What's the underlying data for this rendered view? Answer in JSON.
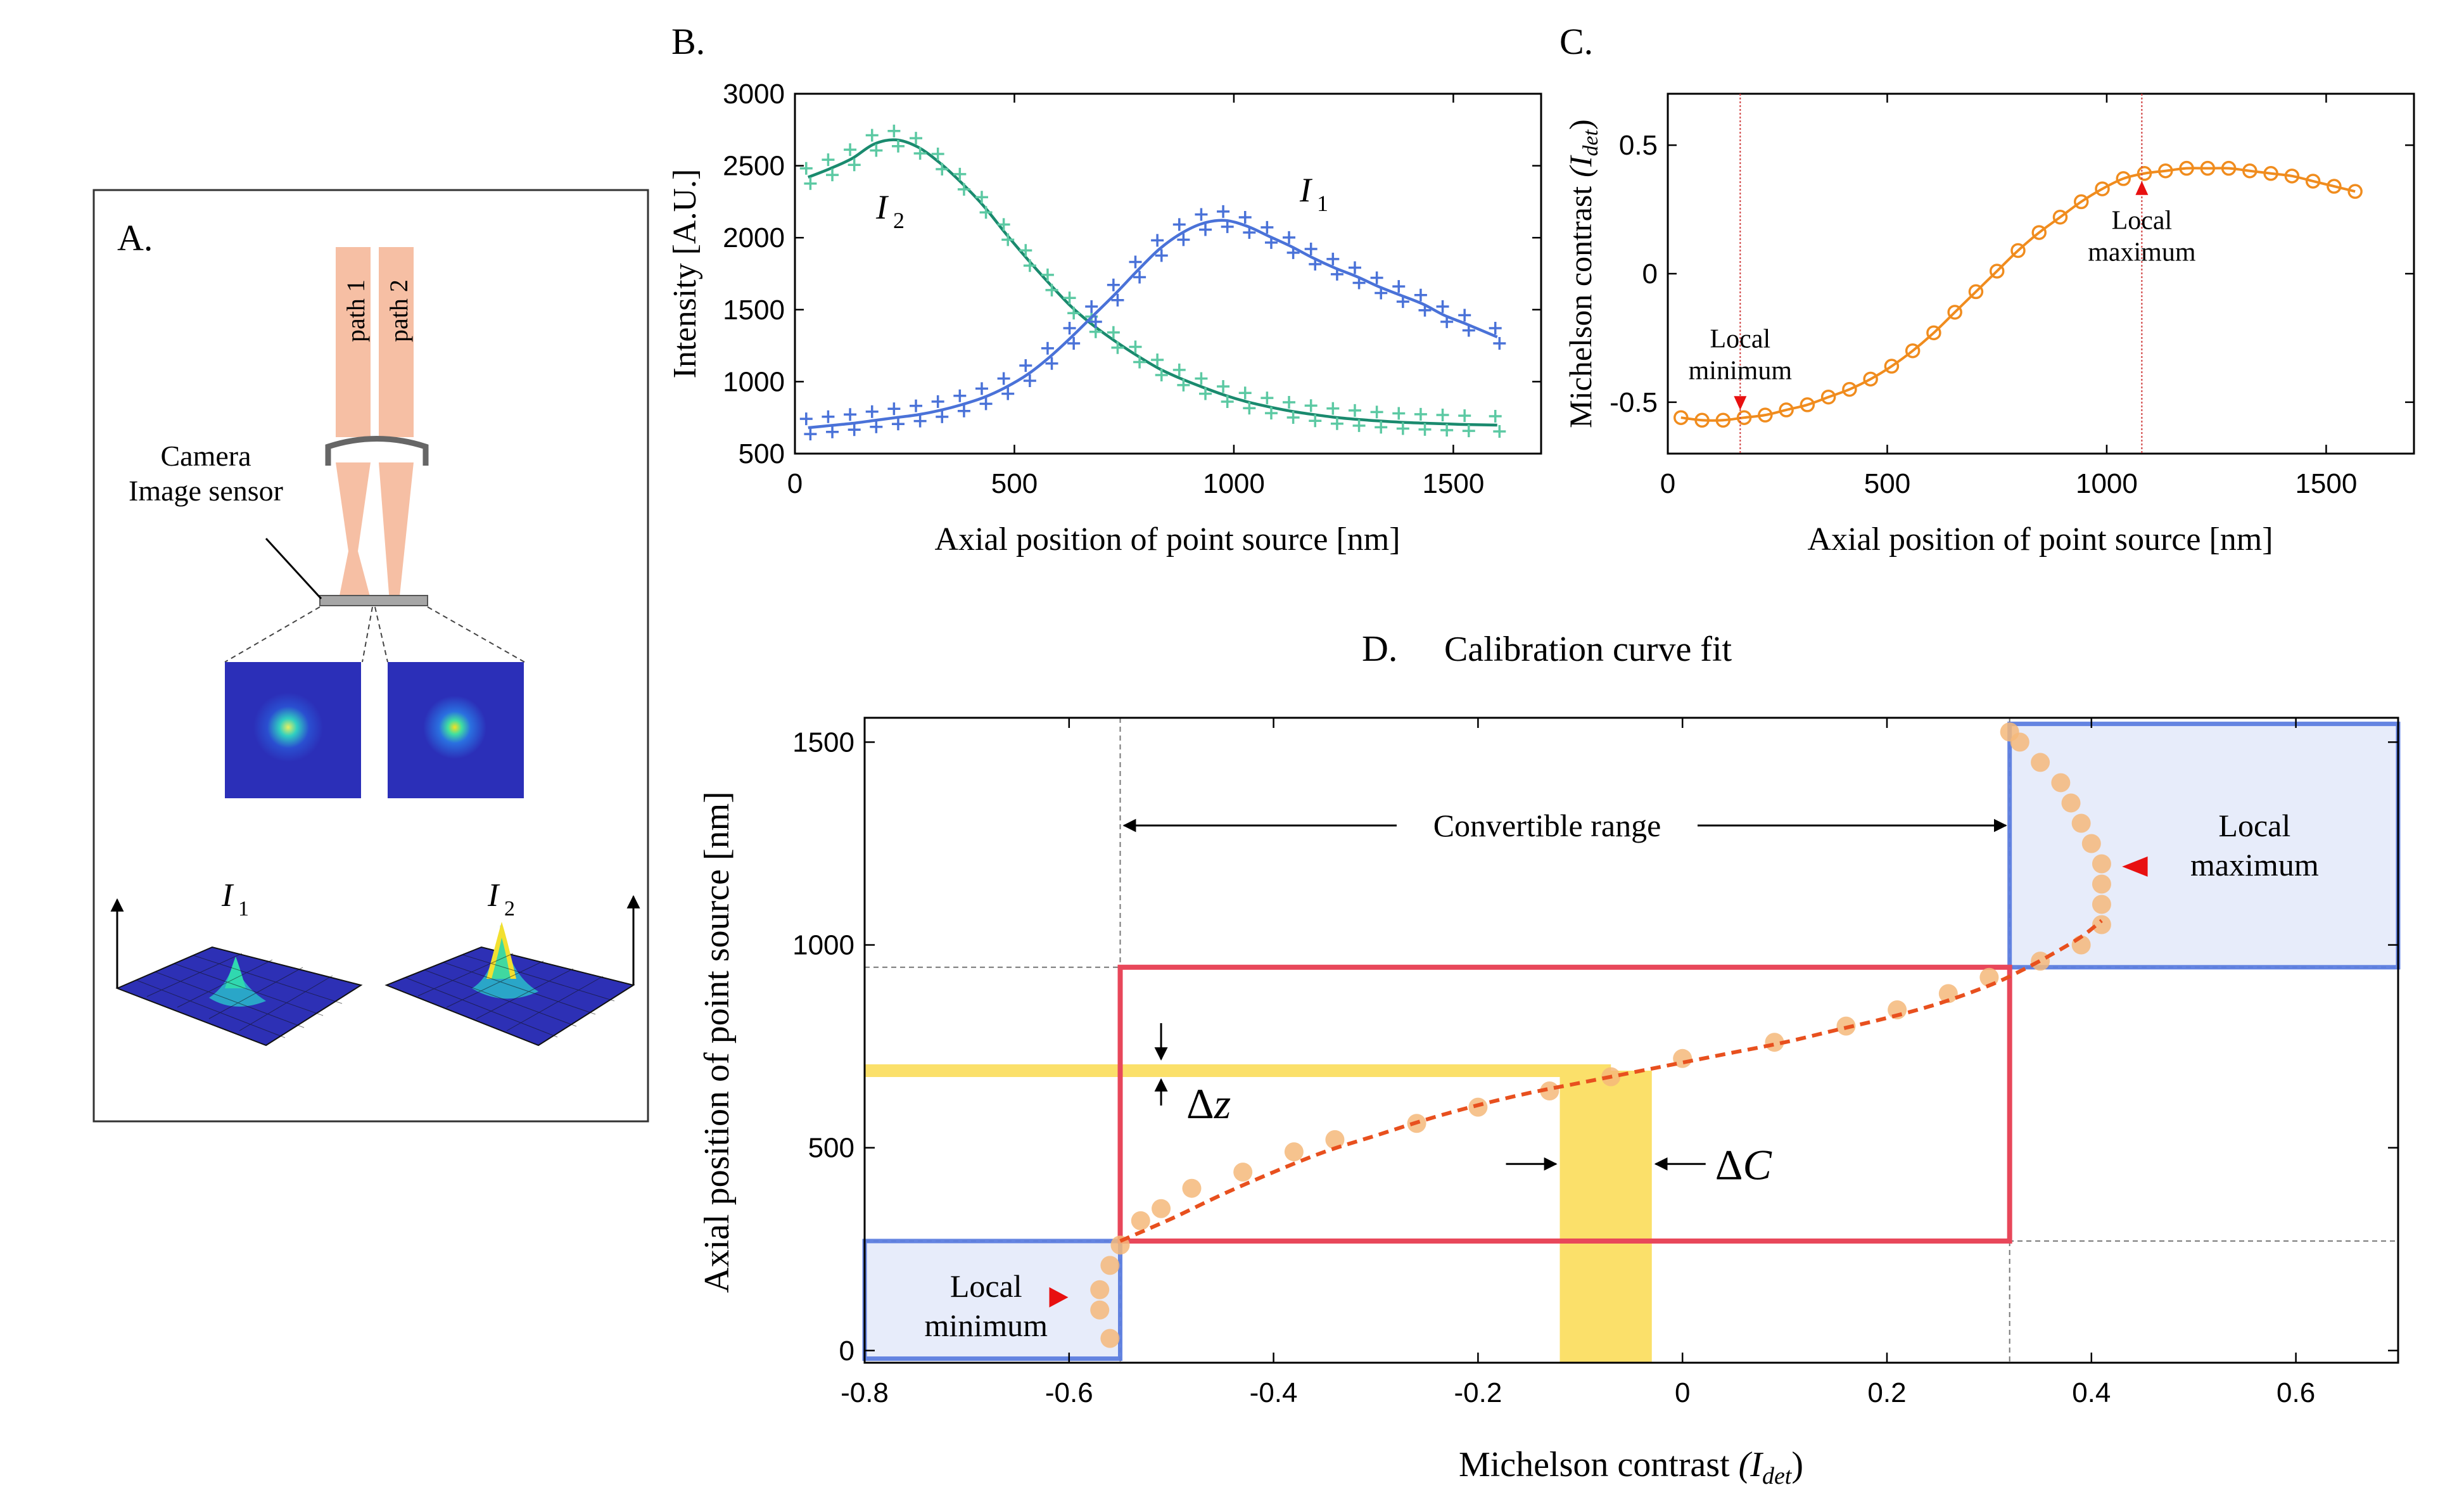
{
  "panel_a": {
    "letter": "A.",
    "path1_label": "path 1",
    "path2_label": "path 2",
    "camera_label": "Camera",
    "sensor_label": "Image sensor",
    "i1_label": "I",
    "i1_sub": "1",
    "i2_label": "I",
    "i2_sub": "2"
  },
  "chart_data": [
    {
      "id": "B",
      "letter": "B.",
      "type": "line",
      "title": "",
      "xlabel": "Axial position of point source [nm]",
      "ylabel": "Intensity [A.U.]",
      "xlim": [
        0,
        1700
      ],
      "ylim": [
        500,
        3000
      ],
      "xticks": [
        0,
        500,
        1000,
        1500
      ],
      "yticks": [
        500,
        1000,
        1500,
        2000,
        2500,
        3000
      ],
      "series": [
        {
          "name": "I2",
          "label_main": "I",
          "label_sub": "2",
          "color": "#1a8a6e",
          "marker_color": "#5cc9a3",
          "x": [
            30,
            80,
            130,
            180,
            230,
            280,
            330,
            380,
            430,
            480,
            530,
            580,
            630,
            680,
            730,
            780,
            830,
            880,
            930,
            980,
            1030,
            1080,
            1130,
            1180,
            1230,
            1280,
            1330,
            1380,
            1430,
            1480,
            1530,
            1600
          ],
          "y": [
            2420,
            2480,
            2550,
            2650,
            2680,
            2630,
            2520,
            2380,
            2220,
            2030,
            1850,
            1680,
            1520,
            1390,
            1280,
            1180,
            1090,
            1020,
            960,
            905,
            860,
            825,
            795,
            772,
            752,
            738,
            727,
            718,
            712,
            707,
            702,
            698
          ]
        },
        {
          "name": "I1",
          "label_main": "I",
          "label_sub": "1",
          "color": "#4a72d8",
          "marker_color": "#4a72d8",
          "x": [
            30,
            80,
            130,
            180,
            230,
            280,
            330,
            380,
            430,
            480,
            530,
            580,
            630,
            680,
            730,
            780,
            830,
            880,
            930,
            980,
            1030,
            1080,
            1130,
            1180,
            1230,
            1280,
            1330,
            1380,
            1430,
            1480,
            1530,
            1600
          ],
          "y": [
            680,
            695,
            710,
            730,
            750,
            770,
            800,
            840,
            890,
            960,
            1050,
            1170,
            1310,
            1460,
            1610,
            1770,
            1920,
            2030,
            2100,
            2120,
            2080,
            2010,
            1940,
            1860,
            1790,
            1730,
            1660,
            1600,
            1540,
            1460,
            1400,
            1310
          ]
        }
      ]
    },
    {
      "id": "C",
      "letter": "C.",
      "type": "line",
      "title": "",
      "xlabel": "Axial position of point source [nm]",
      "ylabel_main": "Michelson contrast",
      "ylabel_sym": "(I",
      "ylabel_sub": "det",
      "ylabel_close": ")",
      "xlim": [
        0,
        1700
      ],
      "ylim": [
        -0.7,
        0.7
      ],
      "xticks": [
        0,
        500,
        1000,
        1500
      ],
      "yticks": [
        -0.5,
        0,
        0.5
      ],
      "color": "#f08c1e",
      "x": [
        30,
        78,
        126,
        174,
        222,
        270,
        318,
        366,
        414,
        462,
        510,
        558,
        606,
        654,
        702,
        750,
        798,
        846,
        894,
        942,
        990,
        1038,
        1086,
        1134,
        1182,
        1230,
        1278,
        1326,
        1374,
        1422,
        1470,
        1518,
        1566
      ],
      "y": [
        -0.56,
        -0.57,
        -0.57,
        -0.56,
        -0.55,
        -0.53,
        -0.51,
        -0.48,
        -0.45,
        -0.41,
        -0.36,
        -0.3,
        -0.23,
        -0.15,
        -0.07,
        0.01,
        0.09,
        0.16,
        0.22,
        0.28,
        0.33,
        0.37,
        0.39,
        0.4,
        0.41,
        0.41,
        0.41,
        0.4,
        0.39,
        0.38,
        0.36,
        0.34,
        0.32
      ],
      "vlines": [
        165,
        1080
      ],
      "annotations": [
        {
          "line1": "Local",
          "line2": "minimum",
          "x": 165,
          "y": -0.57
        },
        {
          "line1": "Local",
          "line2": "maximum",
          "x": 1080,
          "y": 0.4
        }
      ]
    },
    {
      "id": "D",
      "letter": "D.",
      "type": "scatter",
      "title": "Calibration curve fit",
      "xlabel_main": "Michelson contrast",
      "xlabel_sym": "(I",
      "xlabel_sub": "det",
      "xlabel_close": ")",
      "ylabel": "Axial position of point source [nm]",
      "xlim": [
        -0.8,
        0.7
      ],
      "ylim": [
        -30,
        1560
      ],
      "xticks": [
        -0.8,
        -0.6,
        -0.4,
        -0.2,
        0,
        0.2,
        0.4,
        0.6
      ],
      "xtick_labels": [
        "-0.8",
        "-0.6",
        "-0.4",
        "-0.2",
        "0",
        "0.2",
        "0.4",
        "0.6"
      ],
      "yticks": [
        0,
        500,
        1000,
        1500
      ],
      "points_color": "#f5b97a",
      "fit_color": "#e8501e",
      "points": [
        [
          -0.56,
          30
        ],
        [
          -0.57,
          100
        ],
        [
          -0.57,
          150
        ],
        [
          -0.56,
          210
        ],
        [
          -0.55,
          260
        ],
        [
          -0.53,
          320
        ],
        [
          -0.51,
          350
        ],
        [
          -0.48,
          400
        ],
        [
          -0.43,
          440
        ],
        [
          -0.38,
          490
        ],
        [
          -0.34,
          520
        ],
        [
          -0.26,
          560
        ],
        [
          -0.2,
          600
        ],
        [
          -0.13,
          640
        ],
        [
          -0.07,
          675
        ],
        [
          0,
          720
        ],
        [
          0.09,
          760
        ],
        [
          0.16,
          800
        ],
        [
          0.21,
          840
        ],
        [
          0.26,
          880
        ],
        [
          0.3,
          920
        ],
        [
          0.35,
          960
        ],
        [
          0.39,
          1000
        ],
        [
          0.41,
          1050
        ],
        [
          0.41,
          1100
        ],
        [
          0.41,
          1150
        ],
        [
          0.41,
          1200
        ],
        [
          0.4,
          1250
        ],
        [
          0.39,
          1300
        ],
        [
          0.38,
          1350
        ],
        [
          0.37,
          1400
        ],
        [
          0.35,
          1450
        ],
        [
          0.33,
          1500
        ],
        [
          0.32,
          1525
        ]
      ],
      "fit": [
        [
          -0.55,
          270
        ],
        [
          -0.5,
          325
        ],
        [
          -0.45,
          385
        ],
        [
          -0.4,
          440
        ],
        [
          -0.35,
          490
        ],
        [
          -0.3,
          530
        ],
        [
          -0.25,
          570
        ],
        [
          -0.2,
          605
        ],
        [
          -0.15,
          635
        ],
        [
          -0.1,
          660
        ],
        [
          -0.05,
          685
        ],
        [
          0,
          710
        ],
        [
          0.05,
          735
        ],
        [
          0.1,
          760
        ],
        [
          0.15,
          790
        ],
        [
          0.2,
          820
        ],
        [
          0.25,
          855
        ],
        [
          0.3,
          900
        ],
        [
          0.33,
          935
        ],
        [
          0.36,
          975
        ],
        [
          0.39,
          1020
        ],
        [
          0.41,
          1060
        ]
      ],
      "local_min_box": {
        "x0": -0.8,
        "x1": -0.55,
        "y0": -20,
        "y1": 270,
        "line1": "Local",
        "line2": "minimum"
      },
      "local_max_box": {
        "x0": 0.32,
        "x1": 0.7,
        "y0": 945,
        "y1": 1545,
        "line1": "Local",
        "line2": "maximum"
      },
      "red_box": {
        "x0": -0.55,
        "x1": 0.32,
        "y0": 270,
        "y1": 945
      },
      "convertible_range_label": "Convertible range",
      "guide_x": [
        -0.55,
        0.32
      ],
      "guide_y": [
        270,
        945
      ],
      "yellow_h": {
        "y": 690,
        "x0": -0.8,
        "x1": -0.07
      },
      "yellow_v": {
        "x0": -0.12,
        "x1": -0.03,
        "y0": -30,
        "y1": 690
      },
      "delta_z_main": "Δ",
      "delta_z_sym": "z",
      "delta_c_main": "Δ",
      "delta_c_sym": "C"
    }
  ]
}
